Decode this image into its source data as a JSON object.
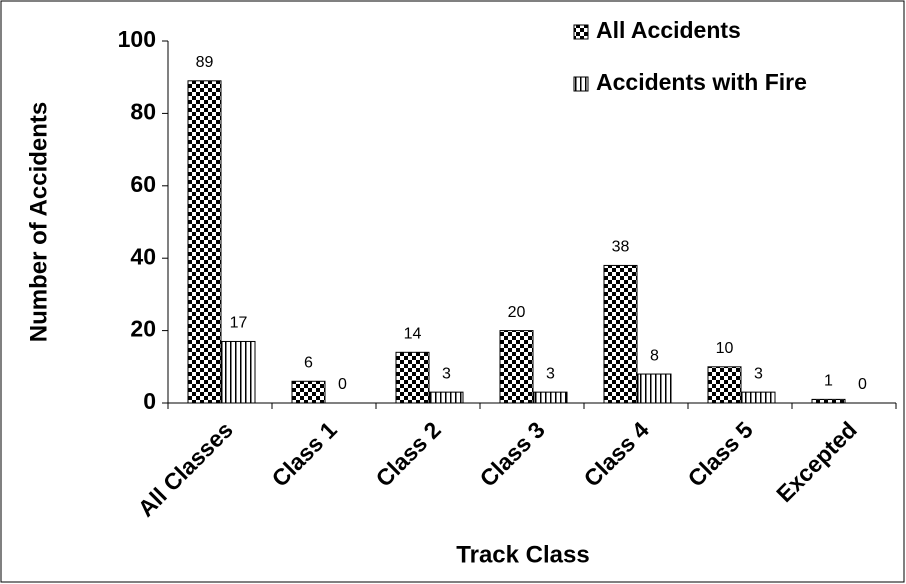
{
  "chart_data": {
    "type": "bar",
    "categories": [
      "All Classes",
      "Class 1",
      "Class 2",
      "Class 3",
      "Class 4",
      "Class 5",
      "Excepted"
    ],
    "series": [
      {
        "name": "All Accidents",
        "color": "#000000",
        "pattern": "checker",
        "values": [
          89,
          6,
          14,
          20,
          38,
          10,
          1
        ]
      },
      {
        "name": "Accidents with Fire",
        "color": "#000000",
        "pattern": "vertical-stripes",
        "values": [
          17,
          0,
          3,
          3,
          8,
          3,
          0
        ]
      }
    ],
    "xlabel": "Track Class",
    "ylabel": "Number of Accidents",
    "ylim": [
      0,
      100
    ],
    "yticks": [
      0,
      20,
      40,
      60,
      80,
      100
    ],
    "grid": false,
    "legend": "top-right"
  }
}
